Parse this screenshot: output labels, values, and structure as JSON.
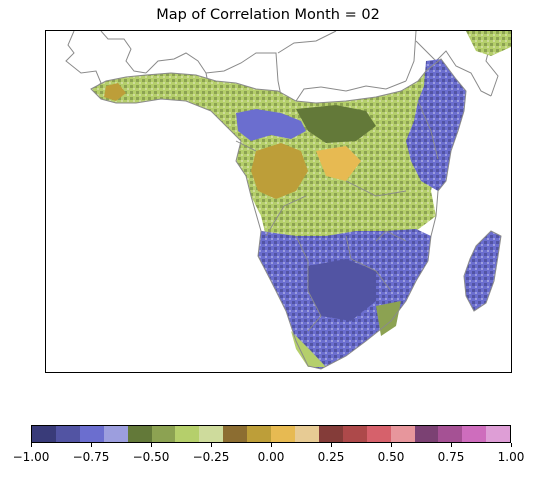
{
  "title": "Map of Correlation Month = 02",
  "colorbar": {
    "colors": [
      "#393b79",
      "#5254a3",
      "#6b6ecf",
      "#9c9ede",
      "#637939",
      "#8ca252",
      "#b5cf6b",
      "#cedb9c",
      "#8c6d31",
      "#bd9e39",
      "#e7ba52",
      "#e7cb94",
      "#843c39",
      "#ad494a",
      "#d6616b",
      "#e7969c",
      "#7b4173",
      "#a55194",
      "#ce6dbd",
      "#de9ed6"
    ],
    "range": [
      -1.0,
      1.0
    ],
    "tick_labels": [
      "−1.00",
      "−0.75",
      "−0.50",
      "−0.25",
      "0.00",
      "0.25",
      "0.50",
      "0.75",
      "1.00"
    ],
    "tick_values": [
      -1.0,
      -0.75,
      -0.5,
      -0.25,
      0.0,
      0.25,
      0.5,
      0.75,
      1.0
    ]
  },
  "map": {
    "region": "Africa south of the Sahel",
    "colormap": "tab20b",
    "borders_color": "#8a8a8a"
  }
}
